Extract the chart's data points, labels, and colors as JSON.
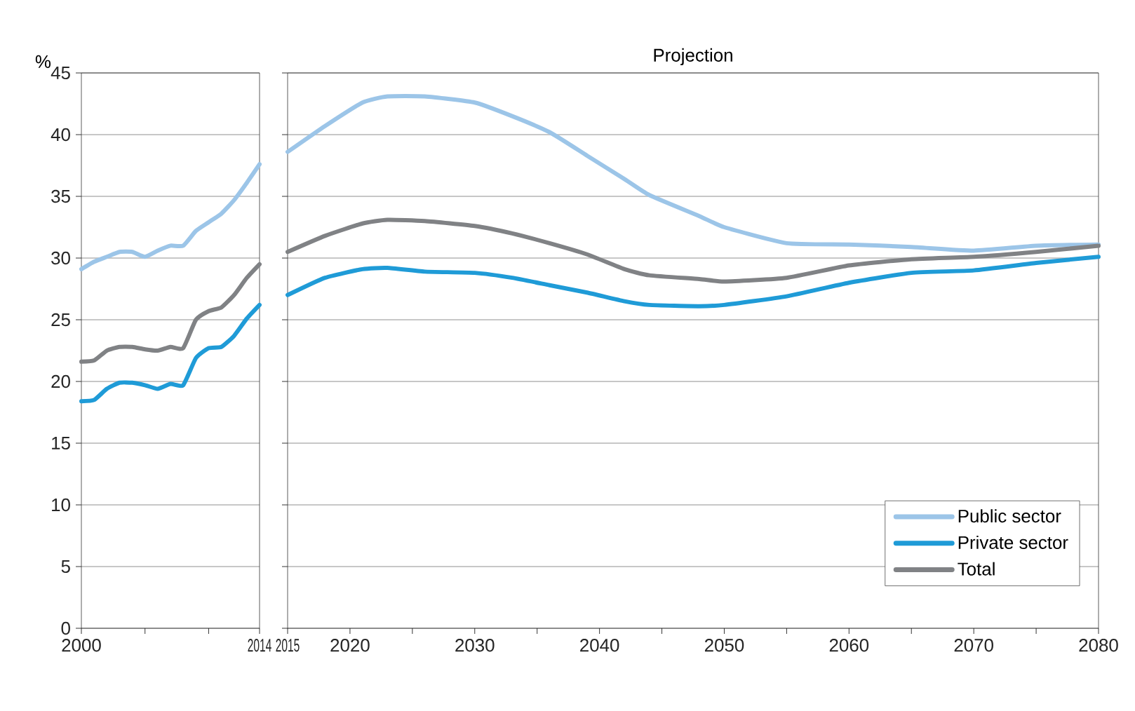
{
  "chart_data": [
    {
      "type": "line",
      "ylabel": "%",
      "xlim": [
        2000,
        2014
      ],
      "xticks": [
        2000,
        {
          "value": 2005,
          "label": null
        },
        {
          "value": 2010,
          "label": null
        },
        2014
      ],
      "ylim": [
        0,
        45
      ],
      "yticks": [
        0,
        5,
        10,
        15,
        20,
        25,
        30,
        35,
        40,
        45
      ],
      "grid": "y",
      "series": [
        {
          "color": "#9cc5e8",
          "x": [
            2000,
            2001,
            2002,
            2003,
            2004,
            2005,
            2006,
            2007,
            2008,
            2009,
            2010,
            2011,
            2012,
            2013,
            2014
          ],
          "values": [
            29.1,
            29.7,
            30.1,
            30.5,
            30.5,
            30.1,
            30.6,
            31.0,
            31.0,
            32.2,
            32.9,
            33.6,
            34.7,
            36.1,
            37.6
          ]
        },
        {
          "color": "#1f9bd7",
          "x": [
            2000,
            2001,
            2002,
            2003,
            2004,
            2005,
            2006,
            2007,
            2008,
            2009,
            2010,
            2011,
            2012,
            2013,
            2014
          ],
          "values": [
            18.4,
            18.5,
            19.4,
            19.9,
            19.9,
            19.7,
            19.4,
            19.8,
            19.7,
            21.9,
            22.7,
            22.8,
            23.7,
            25.1,
            26.2
          ]
        },
        {
          "color": "#808285",
          "x": [
            2000,
            2001,
            2002,
            2003,
            2004,
            2005,
            2006,
            2007,
            2008,
            2009,
            2010,
            2011,
            2012,
            2013,
            2014
          ],
          "values": [
            21.6,
            21.7,
            22.5,
            22.8,
            22.8,
            22.6,
            22.5,
            22.8,
            22.7,
            25.0,
            25.7,
            26.0,
            27.0,
            28.4,
            29.5
          ]
        }
      ]
    },
    {
      "type": "line",
      "title": "Projection",
      "xlim": [
        2015,
        2080
      ],
      "xticks": [
        2015,
        2020,
        {
          "value": 2025,
          "label": null
        },
        2030,
        {
          "value": 2035,
          "label": null
        },
        2040,
        {
          "value": 2045,
          "label": null
        },
        2050,
        {
          "value": 2055,
          "label": null
        },
        2060,
        {
          "value": 2065,
          "label": null
        },
        2070,
        {
          "value": 2075,
          "label": null
        },
        2080
      ],
      "ylim": [
        0,
        45
      ],
      "yticks": [
        {
          "value": 0,
          "label": null
        },
        {
          "value": 5,
          "label": null
        },
        {
          "value": 10,
          "label": null
        },
        {
          "value": 15,
          "label": null
        },
        {
          "value": 20,
          "label": null
        },
        {
          "value": 25,
          "label": null
        },
        {
          "value": 30,
          "label": null
        },
        {
          "value": 35,
          "label": null
        },
        {
          "value": 40,
          "label": null
        },
        {
          "value": 45,
          "label": null
        }
      ],
      "grid": "y",
      "legend": "bottom right",
      "tick_labels": "x",
      "series": [
        {
          "name": "Public sector",
          "color": "#9cc5e8",
          "x": [
            2015,
            2018,
            2021,
            2023,
            2026,
            2030,
            2033,
            2036,
            2039,
            2042,
            2044,
            2048,
            2050,
            2055,
            2060,
            2065,
            2070,
            2075,
            2080
          ],
          "values": [
            38.6,
            40.7,
            42.6,
            43.1,
            43.1,
            42.6,
            41.5,
            40.2,
            38.3,
            36.4,
            35.1,
            33.4,
            32.5,
            31.2,
            31.1,
            30.9,
            30.6,
            31.0,
            31.1
          ]
        },
        {
          "name": "Private sector",
          "color": "#1f9bd7",
          "x": [
            2015,
            2018,
            2021,
            2023,
            2026,
            2030,
            2033,
            2036,
            2039,
            2042,
            2044,
            2048,
            2050,
            2055,
            2060,
            2065,
            2070,
            2075,
            2080
          ],
          "values": [
            27.0,
            28.4,
            29.1,
            29.2,
            28.9,
            28.8,
            28.4,
            27.8,
            27.2,
            26.5,
            26.2,
            26.1,
            26.2,
            26.9,
            28.0,
            28.8,
            29.0,
            29.6,
            30.1
          ]
        },
        {
          "name": "Total",
          "color": "#808285",
          "x": [
            2015,
            2018,
            2021,
            2023,
            2026,
            2030,
            2033,
            2036,
            2039,
            2042,
            2044,
            2048,
            2050,
            2055,
            2060,
            2065,
            2070,
            2075,
            2080
          ],
          "values": [
            30.5,
            31.8,
            32.8,
            33.1,
            33.0,
            32.6,
            32.0,
            31.2,
            30.3,
            29.1,
            28.6,
            28.3,
            28.1,
            28.4,
            29.4,
            29.9,
            30.1,
            30.5,
            31.0
          ]
        }
      ]
    }
  ]
}
